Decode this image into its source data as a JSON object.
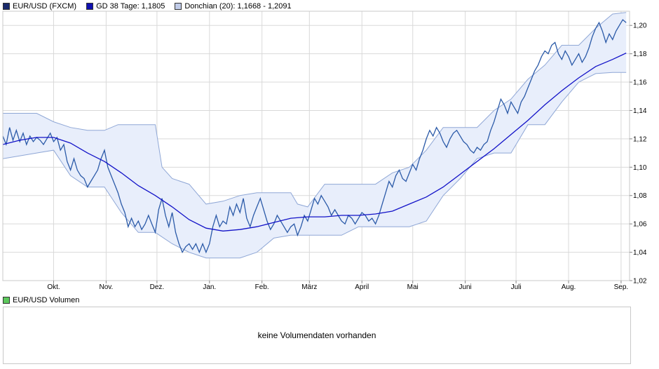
{
  "legend": [
    {
      "label": "EUR/USD (FXCM)",
      "color": "#1a2a6c"
    },
    {
      "label": "GD 38 Tage: 1,1805",
      "color": "#1010b0"
    },
    {
      "label": "Donchian (20): 1,1668 - 1,2091",
      "color": "#c0cbe8"
    }
  ],
  "volume": {
    "legend_label": "EUR/USD Volumen",
    "legend_color": "#5cc85c",
    "empty_text": "keine Volumendaten vorhanden"
  },
  "colors": {
    "price_line": "#2b5aa8",
    "ma_line": "#1212c8",
    "band_fill": "#e8eefb",
    "band_stroke": "#8fa7d6",
    "grid": "#d9d9d9"
  },
  "chart_data": {
    "type": "line",
    "ylim": [
      1.02,
      1.21
    ],
    "yticks": [
      1.02,
      1.04,
      1.06,
      1.08,
      1.1,
      1.12,
      1.14,
      1.16,
      1.18,
      1.2
    ],
    "ytick_labels": [
      "1,02",
      "1,04",
      "1,06",
      "1,08",
      "1,10",
      "1,12",
      "1,14",
      "1,16",
      "1,18",
      "1,20"
    ],
    "xlim": [
      0,
      370
    ],
    "months": [
      {
        "label": "Okt.",
        "x": 30
      },
      {
        "label": "Nov.",
        "x": 61
      },
      {
        "label": "Dez.",
        "x": 91
      },
      {
        "label": "Jan.",
        "x": 122
      },
      {
        "label": "Feb.",
        "x": 153
      },
      {
        "label": "März",
        "x": 181
      },
      {
        "label": "April",
        "x": 212
      },
      {
        "label": "Mai",
        "x": 242
      },
      {
        "label": "Juni",
        "x": 273
      },
      {
        "label": "Juli",
        "x": 303
      },
      {
        "label": "Aug.",
        "x": 334
      },
      {
        "label": "Sep.",
        "x": 365
      }
    ],
    "series": [
      {
        "name": "EUR/USD (FXCM)",
        "points": [
          [
            0,
            1.122
          ],
          [
            2,
            1.116
          ],
          [
            4,
            1.128
          ],
          [
            6,
            1.119
          ],
          [
            8,
            1.126
          ],
          [
            10,
            1.118
          ],
          [
            12,
            1.124
          ],
          [
            14,
            1.116
          ],
          [
            16,
            1.122
          ],
          [
            18,
            1.118
          ],
          [
            20,
            1.121
          ],
          [
            22,
            1.119
          ],
          [
            24,
            1.116
          ],
          [
            26,
            1.12
          ],
          [
            28,
            1.124
          ],
          [
            30,
            1.118
          ],
          [
            32,
            1.121
          ],
          [
            34,
            1.112
          ],
          [
            36,
            1.116
          ],
          [
            38,
            1.104
          ],
          [
            40,
            1.098
          ],
          [
            42,
            1.106
          ],
          [
            44,
            1.098
          ],
          [
            46,
            1.094
          ],
          [
            48,
            1.092
          ],
          [
            50,
            1.086
          ],
          [
            52,
            1.09
          ],
          [
            54,
            1.094
          ],
          [
            56,
            1.098
          ],
          [
            58,
            1.106
          ],
          [
            60,
            1.112
          ],
          [
            62,
            1.1
          ],
          [
            64,
            1.094
          ],
          [
            66,
            1.088
          ],
          [
            68,
            1.082
          ],
          [
            70,
            1.074
          ],
          [
            72,
            1.068
          ],
          [
            74,
            1.058
          ],
          [
            76,
            1.064
          ],
          [
            78,
            1.058
          ],
          [
            80,
            1.062
          ],
          [
            82,
            1.056
          ],
          [
            84,
            1.06
          ],
          [
            86,
            1.066
          ],
          [
            88,
            1.06
          ],
          [
            90,
            1.054
          ],
          [
            92,
            1.07
          ],
          [
            94,
            1.078
          ],
          [
            96,
            1.066
          ],
          [
            98,
            1.058
          ],
          [
            100,
            1.068
          ],
          [
            102,
            1.054
          ],
          [
            104,
            1.046
          ],
          [
            106,
            1.04
          ],
          [
            108,
            1.044
          ],
          [
            110,
            1.046
          ],
          [
            112,
            1.042
          ],
          [
            114,
            1.046
          ],
          [
            116,
            1.04
          ],
          [
            118,
            1.046
          ],
          [
            120,
            1.04
          ],
          [
            122,
            1.046
          ],
          [
            124,
            1.058
          ],
          [
            126,
            1.066
          ],
          [
            128,
            1.058
          ],
          [
            130,
            1.062
          ],
          [
            132,
            1.06
          ],
          [
            134,
            1.072
          ],
          [
            136,
            1.066
          ],
          [
            138,
            1.074
          ],
          [
            140,
            1.068
          ],
          [
            142,
            1.078
          ],
          [
            144,
            1.064
          ],
          [
            146,
            1.058
          ],
          [
            148,
            1.066
          ],
          [
            150,
            1.072
          ],
          [
            152,
            1.078
          ],
          [
            154,
            1.07
          ],
          [
            156,
            1.062
          ],
          [
            158,
            1.056
          ],
          [
            160,
            1.06
          ],
          [
            162,
            1.066
          ],
          [
            164,
            1.062
          ],
          [
            166,
            1.058
          ],
          [
            168,
            1.054
          ],
          [
            170,
            1.058
          ],
          [
            172,
            1.06
          ],
          [
            174,
            1.052
          ],
          [
            176,
            1.058
          ],
          [
            178,
            1.066
          ],
          [
            180,
            1.062
          ],
          [
            182,
            1.07
          ],
          [
            184,
            1.078
          ],
          [
            186,
            1.074
          ],
          [
            188,
            1.08
          ],
          [
            190,
            1.076
          ],
          [
            192,
            1.072
          ],
          [
            194,
            1.066
          ],
          [
            196,
            1.07
          ],
          [
            198,
            1.066
          ],
          [
            200,
            1.062
          ],
          [
            202,
            1.06
          ],
          [
            204,
            1.066
          ],
          [
            206,
            1.064
          ],
          [
            208,
            1.06
          ],
          [
            210,
            1.064
          ],
          [
            212,
            1.068
          ],
          [
            214,
            1.066
          ],
          [
            216,
            1.062
          ],
          [
            218,
            1.064
          ],
          [
            220,
            1.06
          ],
          [
            222,
            1.066
          ],
          [
            224,
            1.074
          ],
          [
            226,
            1.082
          ],
          [
            228,
            1.09
          ],
          [
            230,
            1.086
          ],
          [
            232,
            1.094
          ],
          [
            234,
            1.098
          ],
          [
            236,
            1.092
          ],
          [
            238,
            1.09
          ],
          [
            240,
            1.096
          ],
          [
            242,
            1.102
          ],
          [
            244,
            1.098
          ],
          [
            246,
            1.106
          ],
          [
            248,
            1.112
          ],
          [
            250,
            1.12
          ],
          [
            252,
            1.126
          ],
          [
            254,
            1.122
          ],
          [
            256,
            1.128
          ],
          [
            258,
            1.124
          ],
          [
            260,
            1.118
          ],
          [
            262,
            1.114
          ],
          [
            264,
            1.12
          ],
          [
            266,
            1.124
          ],
          [
            268,
            1.126
          ],
          [
            270,
            1.122
          ],
          [
            272,
            1.118
          ],
          [
            274,
            1.116
          ],
          [
            276,
            1.112
          ],
          [
            278,
            1.11
          ],
          [
            280,
            1.114
          ],
          [
            282,
            1.112
          ],
          [
            284,
            1.116
          ],
          [
            286,
            1.118
          ],
          [
            288,
            1.126
          ],
          [
            290,
            1.132
          ],
          [
            292,
            1.14
          ],
          [
            294,
            1.148
          ],
          [
            296,
            1.144
          ],
          [
            298,
            1.138
          ],
          [
            300,
            1.146
          ],
          [
            302,
            1.142
          ],
          [
            304,
            1.138
          ],
          [
            306,
            1.146
          ],
          [
            308,
            1.15
          ],
          [
            310,
            1.156
          ],
          [
            312,
            1.162
          ],
          [
            314,
            1.168
          ],
          [
            316,
            1.172
          ],
          [
            318,
            1.178
          ],
          [
            320,
            1.182
          ],
          [
            322,
            1.18
          ],
          [
            324,
            1.186
          ],
          [
            326,
            1.188
          ],
          [
            328,
            1.18
          ],
          [
            330,
            1.176
          ],
          [
            332,
            1.182
          ],
          [
            334,
            1.178
          ],
          [
            336,
            1.172
          ],
          [
            338,
            1.176
          ],
          [
            340,
            1.18
          ],
          [
            342,
            1.174
          ],
          [
            344,
            1.178
          ],
          [
            346,
            1.184
          ],
          [
            348,
            1.192
          ],
          [
            350,
            1.198
          ],
          [
            352,
            1.202
          ],
          [
            354,
            1.196
          ],
          [
            356,
            1.188
          ],
          [
            358,
            1.194
          ],
          [
            360,
            1.19
          ],
          [
            362,
            1.196
          ],
          [
            364,
            1.2
          ],
          [
            366,
            1.204
          ],
          [
            368,
            1.202
          ]
        ]
      },
      {
        "name": "GD 38 Tage: 1,1805",
        "points": [
          [
            0,
            1.116
          ],
          [
            10,
            1.119
          ],
          [
            20,
            1.121
          ],
          [
            30,
            1.121
          ],
          [
            40,
            1.117
          ],
          [
            50,
            1.11
          ],
          [
            60,
            1.104
          ],
          [
            70,
            1.096
          ],
          [
            80,
            1.087
          ],
          [
            90,
            1.08
          ],
          [
            100,
            1.072
          ],
          [
            110,
            1.063
          ],
          [
            120,
            1.057
          ],
          [
            130,
            1.055
          ],
          [
            140,
            1.056
          ],
          [
            150,
            1.058
          ],
          [
            160,
            1.061
          ],
          [
            170,
            1.064
          ],
          [
            180,
            1.065
          ],
          [
            190,
            1.065
          ],
          [
            200,
            1.066
          ],
          [
            210,
            1.066
          ],
          [
            220,
            1.067
          ],
          [
            230,
            1.069
          ],
          [
            240,
            1.074
          ],
          [
            250,
            1.079
          ],
          [
            260,
            1.086
          ],
          [
            270,
            1.095
          ],
          [
            280,
            1.104
          ],
          [
            290,
            1.113
          ],
          [
            300,
            1.123
          ],
          [
            310,
            1.133
          ],
          [
            320,
            1.144
          ],
          [
            330,
            1.154
          ],
          [
            340,
            1.163
          ],
          [
            350,
            1.171
          ],
          [
            360,
            1.176
          ],
          [
            368,
            1.1805
          ]
        ]
      },
      {
        "name": "Donchian (20): 1,1668 - 1,2091",
        "upper": [
          [
            0,
            1.138
          ],
          [
            20,
            1.138
          ],
          [
            30,
            1.132
          ],
          [
            40,
            1.128
          ],
          [
            50,
            1.126
          ],
          [
            60,
            1.126
          ],
          [
            68,
            1.13
          ],
          [
            90,
            1.13
          ],
          [
            94,
            1.1
          ],
          [
            100,
            1.092
          ],
          [
            110,
            1.088
          ],
          [
            120,
            1.074
          ],
          [
            130,
            1.076
          ],
          [
            140,
            1.08
          ],
          [
            150,
            1.082
          ],
          [
            170,
            1.082
          ],
          [
            174,
            1.074
          ],
          [
            180,
            1.072
          ],
          [
            190,
            1.088
          ],
          [
            200,
            1.088
          ],
          [
            220,
            1.088
          ],
          [
            230,
            1.096
          ],
          [
            240,
            1.1
          ],
          [
            250,
            1.112
          ],
          [
            260,
            1.128
          ],
          [
            270,
            1.128
          ],
          [
            280,
            1.128
          ],
          [
            290,
            1.14
          ],
          [
            300,
            1.148
          ],
          [
            310,
            1.162
          ],
          [
            320,
            1.172
          ],
          [
            330,
            1.186
          ],
          [
            340,
            1.186
          ],
          [
            350,
            1.198
          ],
          [
            360,
            1.208
          ],
          [
            368,
            1.2091
          ]
        ],
        "lower": [
          [
            0,
            1.106
          ],
          [
            20,
            1.11
          ],
          [
            30,
            1.112
          ],
          [
            40,
            1.094
          ],
          [
            50,
            1.086
          ],
          [
            60,
            1.086
          ],
          [
            70,
            1.068
          ],
          [
            80,
            1.054
          ],
          [
            90,
            1.054
          ],
          [
            100,
            1.046
          ],
          [
            110,
            1.04
          ],
          [
            120,
            1.036
          ],
          [
            140,
            1.036
          ],
          [
            150,
            1.04
          ],
          [
            160,
            1.05
          ],
          [
            170,
            1.052
          ],
          [
            180,
            1.052
          ],
          [
            200,
            1.052
          ],
          [
            210,
            1.058
          ],
          [
            220,
            1.058
          ],
          [
            230,
            1.058
          ],
          [
            240,
            1.058
          ],
          [
            250,
            1.062
          ],
          [
            260,
            1.08
          ],
          [
            270,
            1.092
          ],
          [
            280,
            1.106
          ],
          [
            290,
            1.11
          ],
          [
            300,
            1.11
          ],
          [
            310,
            1.13
          ],
          [
            320,
            1.13
          ],
          [
            330,
            1.146
          ],
          [
            340,
            1.16
          ],
          [
            350,
            1.166
          ],
          [
            360,
            1.1668
          ],
          [
            368,
            1.1668
          ]
        ]
      }
    ]
  }
}
